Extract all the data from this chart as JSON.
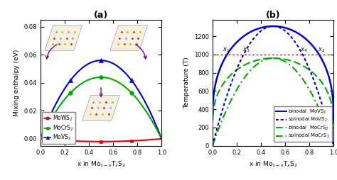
{
  "title_a": "(a)",
  "title_b": "(b)",
  "xlabel": "x in Mo$_{1-x}$T$_x$S$_2$",
  "ylabel_a": "Mixing enthalpy (eV)",
  "ylabel_b": "Temperature (T)",
  "ylim_a": [
    -0.005,
    0.085
  ],
  "ylim_b": [
    0,
    1380
  ],
  "xlim": [
    0.0,
    1.0
  ],
  "yticks_a": [
    0.0,
    0.02,
    0.04,
    0.06,
    0.08
  ],
  "yticks_b": [
    0,
    200,
    400,
    600,
    800,
    1000,
    1200
  ],
  "xticks": [
    0.0,
    0.2,
    0.4,
    0.6,
    0.8,
    1.0
  ],
  "moWS2_max": -0.002,
  "moCrS2_max": 0.044,
  "moVS2_max": 0.056,
  "moWS2_color": "#dd0000",
  "moCrS2_color": "#00aa00",
  "moVS2_color": "#0000cc",
  "binodal_moVS2_max": 1310,
  "binodal_moCrS2_max": 960,
  "T_line": 1000,
  "T_line_color": "#dd0000",
  "moVS2_binodal_color": "#0000cc",
  "moVS2_spinodal_color": "#0000cc",
  "moCrS2_binodal_color": "#00aa00",
  "moCrS2_spinodal_color": "#00aa00",
  "arrow_color": "#800080",
  "fig_width": 4.74,
  "fig_height": 2.54,
  "dpi": 100
}
